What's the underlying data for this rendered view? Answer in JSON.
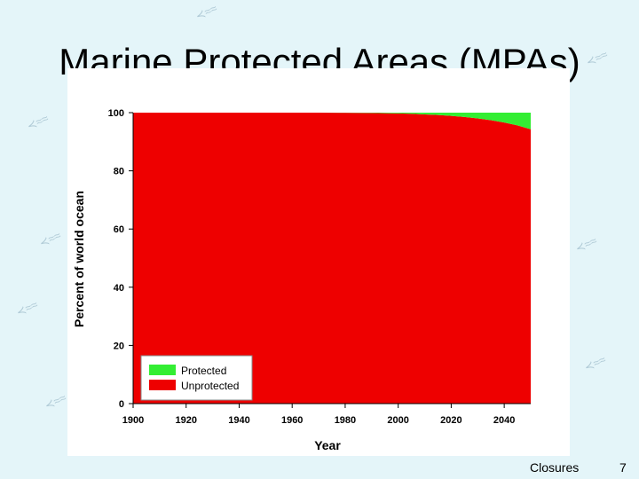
{
  "slide": {
    "title": "Marine Protected Areas (MPAs)",
    "footer": "Closures",
    "page_number": "7"
  },
  "colors": {
    "protected": "#33ee33",
    "unprotected": "#ee0000",
    "background": "#e4f5f9"
  },
  "chart_data": {
    "type": "area",
    "title": "",
    "xlabel": "Year",
    "ylabel": "Percent of world ocean",
    "xlim": [
      1900,
      2050
    ],
    "ylim": [
      0,
      100
    ],
    "xticks": [
      1900,
      1920,
      1940,
      1960,
      1980,
      2000,
      2020,
      2040
    ],
    "yticks": [
      0,
      20,
      40,
      60,
      80,
      100
    ],
    "stacked": true,
    "x": [
      1900,
      1910,
      1920,
      1930,
      1940,
      1950,
      1960,
      1970,
      1980,
      1990,
      2000,
      2005,
      2010,
      2015,
      2020,
      2025,
      2030,
      2035,
      2040,
      2045,
      2050
    ],
    "series": [
      {
        "name": "Unprotected",
        "values": [
          100,
          100,
          100,
          100,
          100,
          100,
          100,
          100,
          99.95,
          99.9,
          99.75,
          99.6,
          99.4,
          99.2,
          98.9,
          98.5,
          98.0,
          97.4,
          96.6,
          95.6,
          94.3
        ]
      },
      {
        "name": "Protected",
        "values": [
          0,
          0,
          0,
          0,
          0,
          0,
          0,
          0,
          0.05,
          0.1,
          0.25,
          0.4,
          0.6,
          0.8,
          1.1,
          1.5,
          2.0,
          2.6,
          3.4,
          4.4,
          5.7
        ]
      }
    ],
    "legend": {
      "position": "bottom-left",
      "entries": [
        "Protected",
        "Unprotected"
      ]
    }
  }
}
